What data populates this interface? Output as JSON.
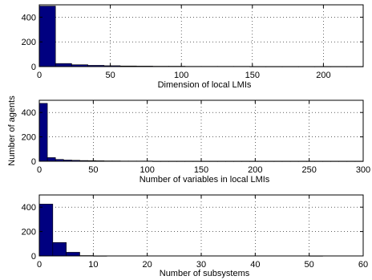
{
  "ylabel": "Number of agents",
  "colors": {
    "bar_fill": "#000080",
    "bar_edge": "#000000"
  },
  "chart_data": [
    {
      "type": "bar",
      "xlabel": "Dimension of local LMIs",
      "xlim": [
        0,
        228
      ],
      "ylim": [
        0,
        500
      ],
      "xticks": [
        0,
        50,
        100,
        150,
        200
      ],
      "yticks": [
        0,
        200,
        400
      ],
      "grid": true,
      "bin_width": 11.4,
      "bins_start": [
        0,
        11.4,
        22.8,
        34.2,
        45.6,
        57.0,
        68.4,
        79.8,
        91.2,
        102.6,
        114.0,
        125.4,
        136.8,
        148.2,
        159.6,
        171.0,
        182.4,
        193.8,
        205.2,
        216.6
      ],
      "values": [
        490,
        25,
        15,
        10,
        7,
        5,
        4,
        3,
        3,
        2,
        2,
        2,
        2,
        1,
        1,
        1,
        1,
        1,
        1,
        1
      ]
    },
    {
      "type": "bar",
      "xlabel": "Number of variables in local LMIs",
      "xlim": [
        0,
        300
      ],
      "ylim": [
        0,
        500
      ],
      "xticks": [
        0,
        50,
        100,
        150,
        200,
        250,
        300
      ],
      "yticks": [
        0,
        200,
        400
      ],
      "grid": true,
      "bin_width": 7.5,
      "bins_start": [
        0,
        7.5,
        15,
        22.5,
        30,
        37.5,
        45,
        52.5,
        60,
        67.5,
        75,
        82.5,
        90,
        97.5,
        105,
        112.5,
        120,
        127.5,
        135,
        142.5,
        150,
        157.5,
        165,
        172.5,
        180,
        187.5,
        195,
        202.5,
        210,
        217.5,
        225,
        232.5,
        240,
        247.5,
        255,
        262.5,
        270,
        277.5,
        285,
        292.5
      ],
      "values": [
        475,
        30,
        15,
        10,
        8,
        6,
        5,
        4,
        3,
        3,
        2,
        2,
        2,
        2,
        1,
        1,
        1,
        1,
        1,
        1,
        1,
        1,
        1,
        1,
        1,
        1,
        1,
        1,
        1,
        1,
        1,
        1,
        1,
        1,
        1,
        1,
        1,
        1,
        1,
        1
      ]
    },
    {
      "type": "bar",
      "xlabel": "Number of subsystems",
      "xlim": [
        0,
        60
      ],
      "ylim": [
        0,
        500
      ],
      "xticks": [
        0,
        10,
        20,
        30,
        40,
        50,
        60
      ],
      "yticks": [
        0,
        200,
        400
      ],
      "grid": true,
      "bin_width": 2.5,
      "bins_start": [
        0,
        2.5,
        5,
        7.5,
        10,
        12.5,
        15,
        17.5,
        20,
        22.5,
        25,
        27.5,
        30,
        32.5,
        35,
        37.5,
        40,
        42.5,
        45,
        47.5,
        50,
        52.5,
        55,
        57.5
      ],
      "values": [
        425,
        110,
        30,
        3,
        1,
        0,
        0,
        0,
        0,
        0,
        0,
        0,
        0,
        0,
        0,
        0,
        0,
        0,
        0,
        0,
        1,
        0,
        0,
        0
      ]
    }
  ]
}
